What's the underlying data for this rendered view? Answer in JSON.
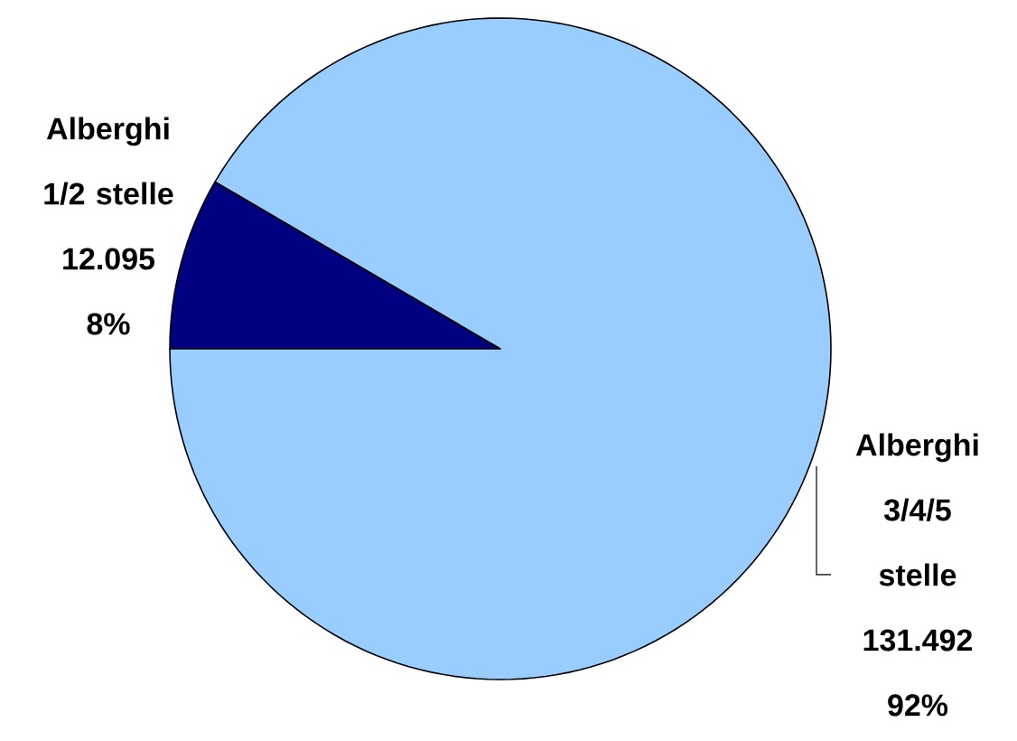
{
  "chart_data": {
    "type": "pie",
    "categories": [
      "Alberghi 1/2 stelle",
      "Alberghi 3/4/5 stelle"
    ],
    "values": [
      12095,
      131492
    ],
    "value_labels": [
      "12.095",
      "131.492"
    ],
    "colors": [
      "#000080",
      "#99ccff"
    ],
    "annotations": [
      {
        "text": "8%",
        "x": "Alberghi 1/2 stelle"
      },
      {
        "text": "92%",
        "x": "Alberghi 3/4/5 stelle"
      }
    ]
  }
}
